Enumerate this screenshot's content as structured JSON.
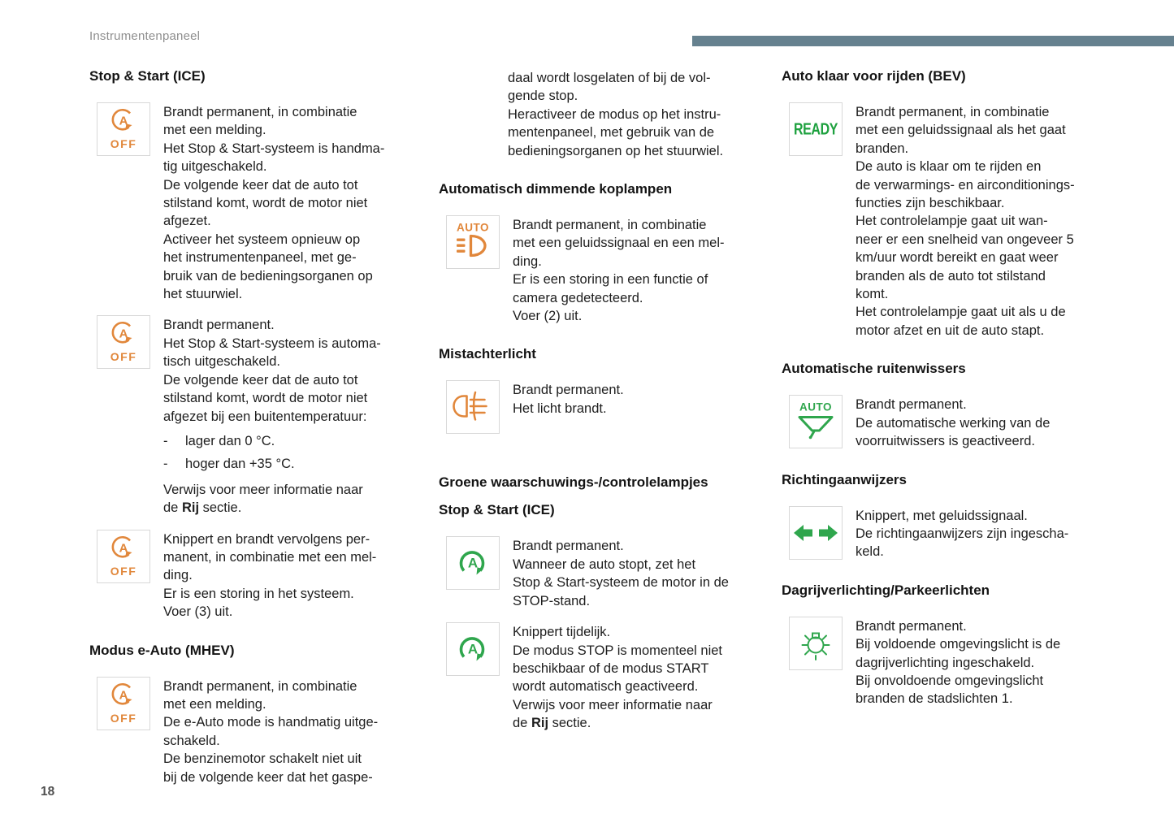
{
  "page": {
    "masthead": "Instrumentenpaneel",
    "page_number": "18"
  },
  "colors": {
    "masthead_bar": "#66818f",
    "amber_indicator": "#e1873b",
    "green_indicator": "#2fa64d",
    "heading_text": "#141414",
    "body_text": "#1e1e1e"
  },
  "columns": [
    {
      "items": [
        {
          "kind": "heading",
          "level": 2,
          "text": "Stop & Start (ICE)"
        },
        {
          "kind": "entry",
          "icon": "stop-start-off-amber",
          "blocks": [
            {
              "type": "p",
              "lines": [
                "Brandt permanent, in combinatie",
                "met een melding.",
                "Het Stop & Start-systeem is handma-",
                "tig uitgeschakeld.",
                "De volgende keer dat de auto tot",
                "stilstand komt, wordt de motor niet",
                "afgezet.",
                "Activeer het systeem opnieuw op",
                "het instrumentenpaneel, met ge-",
                "bruik van de bedieningsorganen op",
                "het stuurwiel."
              ]
            }
          ]
        },
        {
          "kind": "entry",
          "icon": "stop-start-off-amber",
          "blocks": [
            {
              "type": "p",
              "lines": [
                "Brandt permanent.",
                "Het Stop & Start-systeem is automa-",
                "tisch uitgeschakeld.",
                "De volgende keer dat de auto tot",
                "stilstand komt, wordt de motor niet",
                "afgezet bij een buitentemperatuur:"
              ]
            },
            {
              "type": "bullets",
              "items": [
                "lager dan 0 °C.",
                "hoger dan +35 °C."
              ]
            },
            {
              "type": "p",
              "lines": [
                "Verwijs voor meer informatie naar",
                [
                  {
                    "t": "de "
                  },
                  {
                    "t": "Rij",
                    "b": true
                  },
                  {
                    "t": " sectie."
                  }
                ]
              ]
            }
          ]
        },
        {
          "kind": "entry",
          "icon": "stop-start-off-amber",
          "blocks": [
            {
              "type": "p",
              "lines": [
                "Knippert en brandt vervolgens per-",
                "manent, in combinatie met een mel-",
                "ding.",
                "Er is een storing in het systeem.",
                "Voer (3) uit."
              ]
            }
          ]
        },
        {
          "kind": "heading",
          "level": 2,
          "text": "Modus e-Auto (MHEV)"
        },
        {
          "kind": "entry",
          "icon": "stop-start-off-amber",
          "blocks": [
            {
              "type": "p",
              "lines": [
                "Brandt permanent, in combinatie",
                "met een melding.",
                "De e-Auto mode is handmatig uitge-",
                "schakeld.",
                "De benzinemotor schakelt niet uit",
                "bij de volgende keer dat het gaspe-"
              ]
            }
          ]
        }
      ]
    },
    {
      "items": [
        {
          "kind": "entry",
          "icon": null,
          "blocks": [
            {
              "type": "p",
              "lines": [
                "daal wordt losgelaten of bij de vol-",
                "gende stop.",
                "Heractiveer de modus op het instru-",
                "mentenpaneel, met gebruik van de",
                "bedieningsorganen op het stuurwiel."
              ]
            }
          ]
        },
        {
          "kind": "heading",
          "level": 2,
          "text": "Automatisch dimmende koplampen"
        },
        {
          "kind": "entry",
          "icon": "auto-dimming-headlamp-amber",
          "blocks": [
            {
              "type": "p",
              "lines": [
                "Brandt permanent, in combinatie",
                "met een geluidssignaal en een mel-",
                "ding.",
                "Er is een storing in een functie of",
                "camera gedetecteerd.",
                "Voer (2) uit."
              ]
            }
          ]
        },
        {
          "kind": "heading",
          "level": 2,
          "text": "Mistachterlicht"
        },
        {
          "kind": "entry",
          "icon": "rear-fog-light-amber",
          "blocks": [
            {
              "type": "p",
              "lines": [
                "Brandt permanent.",
                "Het licht brandt."
              ]
            }
          ]
        },
        {
          "kind": "heading",
          "level": 1,
          "text": "Groene waarschuwings-/controlelampjes"
        },
        {
          "kind": "heading",
          "level": 2,
          "text": "Stop & Start (ICE)"
        },
        {
          "kind": "entry",
          "icon": "stop-start-green",
          "blocks": [
            {
              "type": "p",
              "lines": [
                "Brandt permanent.",
                "Wanneer de auto stopt, zet het",
                "Stop & Start-systeem de motor in de",
                "STOP-stand."
              ]
            }
          ]
        },
        {
          "kind": "entry",
          "icon": "stop-start-green",
          "blocks": [
            {
              "type": "p",
              "lines": [
                "Knippert tijdelijk.",
                "De modus STOP is momenteel niet",
                "beschikbaar of de modus START",
                "wordt automatisch geactiveerd.",
                "Verwijs voor meer informatie naar",
                [
                  {
                    "t": "de "
                  },
                  {
                    "t": "Rij",
                    "b": true
                  },
                  {
                    "t": " sectie."
                  }
                ]
              ]
            }
          ]
        }
      ]
    },
    {
      "items": [
        {
          "kind": "heading",
          "level": 2,
          "text": "Auto klaar voor rijden (BEV)"
        },
        {
          "kind": "entry",
          "icon": "ready-green",
          "blocks": [
            {
              "type": "p",
              "lines": [
                "Brandt permanent, in combinatie",
                "met een geluidssignaal als het gaat",
                "branden.",
                "De auto is klaar om te rijden en",
                "de verwarmings- en airconditionings-",
                "functies zijn beschikbaar.",
                "Het controlelampje gaat uit wan-",
                "neer er een snelheid van ongeveer 5",
                "km/uur wordt bereikt en gaat weer",
                "branden als de auto tot stilstand",
                "komt.",
                "Het controlelampje gaat uit als u de",
                "motor afzet en uit de auto stapt."
              ]
            }
          ]
        },
        {
          "kind": "heading",
          "level": 2,
          "text": "Automatische ruitenwissers"
        },
        {
          "kind": "entry",
          "icon": "auto-wipers-green",
          "blocks": [
            {
              "type": "p",
              "lines": [
                "Brandt permanent.",
                "De automatische werking van de",
                "voorruitwissers is geactiveerd."
              ]
            }
          ]
        },
        {
          "kind": "heading",
          "level": 2,
          "text": "Richtingaanwijzers"
        },
        {
          "kind": "entry",
          "icon": "turn-signals-green",
          "blocks": [
            {
              "type": "p",
              "lines": [
                "Knippert, met geluidssignaal.",
                "De richtingaanwijzers zijn ingescha-",
                "keld."
              ]
            }
          ]
        },
        {
          "kind": "heading",
          "level": 2,
          "text": "Dagrijverlichting/Parkeerlichten"
        },
        {
          "kind": "entry",
          "icon": "daytime-running-lights-green",
          "blocks": [
            {
              "type": "p",
              "lines": [
                "Brandt permanent.",
                "Bij voldoende omgevingslicht is de",
                "dagrijverlichting ingeschakeld.",
                "Bij onvoldoende omgevingslicht",
                "branden de stadslichten 1."
              ]
            }
          ]
        }
      ]
    }
  ]
}
